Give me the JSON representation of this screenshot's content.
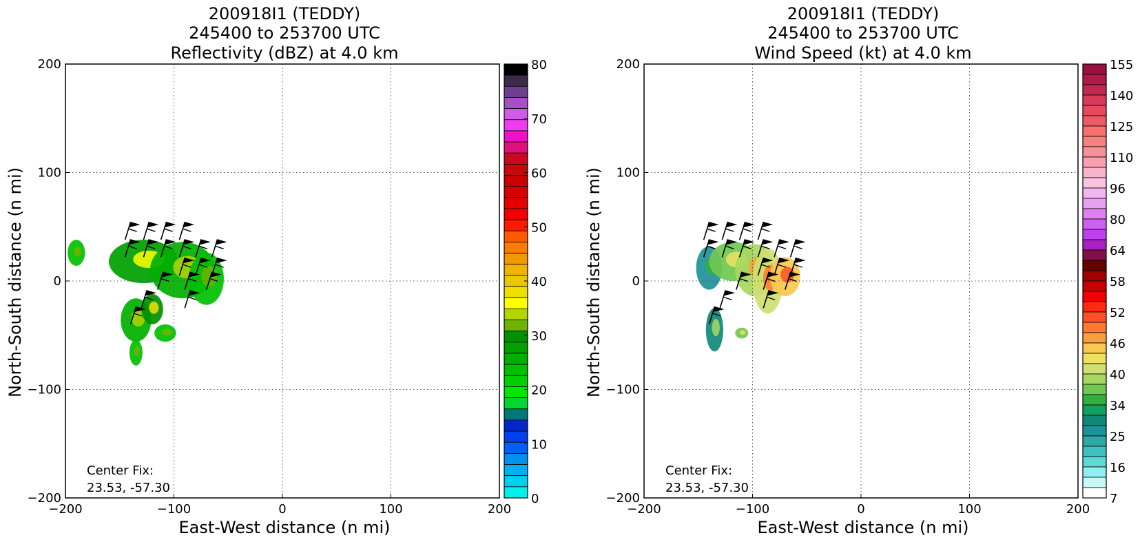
{
  "panels": [
    {
      "title_lines": [
        "200918I1 (TEDDY)",
        "245400 to 253700 UTC",
        "Reflectivity (dBZ) at 4.0 km"
      ],
      "xlabel": "East-West distance (n mi)",
      "ylabel": "North-South distance (n mi)",
      "center_fix_label": "Center Fix:",
      "center_fix_value": "23.53, -57.30",
      "colorbar": {
        "ticks": [
          "80",
          "70",
          "60",
          "50",
          "40",
          "30",
          "20",
          "10",
          "0"
        ],
        "colors_top_to_bottom": [
          "#000000",
          "#3c2a48",
          "#6f3f8f",
          "#a64fc9",
          "#d25ae8",
          "#f03cf0",
          "#f010c8",
          "#e0107a",
          "#cc0820",
          "#c40a0a",
          "#cc0000",
          "#d80000",
          "#e80000",
          "#f40000",
          "#ff1a00",
          "#ff5a00",
          "#ff7a00",
          "#f09a00",
          "#f0b400",
          "#e8c800",
          "#f0e000",
          "#ffff00",
          "#b4d400",
          "#6cb400",
          "#009000",
          "#00a000",
          "#00b000",
          "#00c000",
          "#00d000",
          "#00e800",
          "#00d830",
          "#007878",
          "#0028c8",
          "#0040f0",
          "#0060f8",
          "#0090f0",
          "#00b0f0",
          "#00d0f0",
          "#00f0f0"
        ]
      }
    },
    {
      "title_lines": [
        "200918I1 (TEDDY)",
        "245400 to 253700 UTC",
        "Wind Speed (kt) at 4.0 km"
      ],
      "xlabel": "East-West distance (n mi)",
      "ylabel": "North-South distance (n mi)",
      "center_fix_label": "Center Fix:",
      "center_fix_value": "23.53, -57.30",
      "colorbar": {
        "ticks": [
          "155",
          "140",
          "125",
          "110",
          "96",
          "80",
          "64",
          "58",
          "52",
          "46",
          "40",
          "34",
          "25",
          "16",
          "7"
        ],
        "colors_top_to_bottom": [
          "#9a1040",
          "#b01a48",
          "#c02a50",
          "#d83a58",
          "#e84a5c",
          "#f05a64",
          "#f87070",
          "#f88080",
          "#f89098",
          "#f8a0b0",
          "#f8b4c8",
          "#f8c4e0",
          "#f0b8ee",
          "#e8a0f0",
          "#e080f0",
          "#d060f0",
          "#c040f0",
          "#a820c0",
          "#801048",
          "#6a0000",
          "#a00000",
          "#c80000",
          "#f00000",
          "#ff2a10",
          "#ff5028",
          "#ff7a30",
          "#f8a040",
          "#f8c850",
          "#f0e060",
          "#d0e070",
          "#a8d860",
          "#70c850",
          "#30b040",
          "#10a060",
          "#108878",
          "#20909a",
          "#30a8a8",
          "#40c0c0",
          "#60d8d8",
          "#90f0f0",
          "#c8f8f8",
          "#ffffff"
        ]
      }
    }
  ],
  "chart_data": [
    {
      "type": "heatmap",
      "title": "200918I1 (TEDDY) 245400 to 253700 UTC Reflectivity (dBZ) at 4.0 km",
      "xlabel": "East-West distance (n mi)",
      "ylabel": "North-South distance (n mi)",
      "xlim": [
        -200,
        200
      ],
      "ylim": [
        -200,
        200
      ],
      "xticks": [
        -200,
        -100,
        0,
        100,
        200
      ],
      "yticks": [
        -200,
        -100,
        0,
        100,
        200
      ],
      "grid": true,
      "colorbar_label_ticks": [
        0,
        10,
        20,
        30,
        40,
        50,
        60,
        70,
        80
      ],
      "echo_regions": [
        {
          "cx": -128,
          "cy": 18,
          "rx": 32,
          "ry": 20,
          "value": 28
        },
        {
          "cx": -92,
          "cy": 10,
          "rx": 30,
          "ry": 26,
          "value": 26
        },
        {
          "cx": -70,
          "cy": 2,
          "rx": 16,
          "ry": 24,
          "value": 24
        },
        {
          "cx": -190,
          "cy": 26,
          "rx": 8,
          "ry": 12,
          "value": 24
        },
        {
          "cx": -135,
          "cy": -36,
          "rx": 14,
          "ry": 20,
          "value": 26
        },
        {
          "cx": -120,
          "cy": -26,
          "rx": 10,
          "ry": 14,
          "value": 30
        },
        {
          "cx": -108,
          "cy": -48,
          "rx": 10,
          "ry": 8,
          "value": 24
        },
        {
          "cx": -135,
          "cy": -66,
          "rx": 6,
          "ry": 12,
          "value": 24
        }
      ],
      "wind_barbs": [
        {
          "x": -145,
          "y": 38
        },
        {
          "x": -128,
          "y": 38
        },
        {
          "x": -112,
          "y": 38
        },
        {
          "x": -95,
          "y": 38
        },
        {
          "x": -145,
          "y": 22
        },
        {
          "x": -128,
          "y": 22
        },
        {
          "x": -112,
          "y": 22
        },
        {
          "x": -95,
          "y": 22
        },
        {
          "x": -80,
          "y": 22
        },
        {
          "x": -65,
          "y": 22
        },
        {
          "x": -95,
          "y": 5
        },
        {
          "x": -80,
          "y": 5
        },
        {
          "x": -65,
          "y": 5
        },
        {
          "x": -115,
          "y": -8
        },
        {
          "x": -90,
          "y": -8
        },
        {
          "x": -70,
          "y": -8
        },
        {
          "x": -130,
          "y": -25
        },
        {
          "x": -90,
          "y": -25
        },
        {
          "x": -140,
          "y": -40
        }
      ]
    },
    {
      "type": "heatmap",
      "title": "200918I1 (TEDDY) 245400 to 253700 UTC Wind Speed (kt) at 4.0 km",
      "xlabel": "East-West distance (n mi)",
      "ylabel": "North-South distance (n mi)",
      "xlim": [
        -200,
        200
      ],
      "ylim": [
        -200,
        200
      ],
      "xticks": [
        -200,
        -100,
        0,
        100,
        200
      ],
      "yticks": [
        -200,
        -100,
        0,
        100,
        200
      ],
      "grid": true,
      "colorbar_label_ticks": [
        7,
        16,
        25,
        34,
        40,
        46,
        52,
        58,
        64,
        80,
        96,
        110,
        125,
        140,
        155
      ],
      "speed_regions": [
        {
          "cx": -140,
          "cy": 12,
          "rx": 12,
          "ry": 20,
          "value": 30
        },
        {
          "cx": -118,
          "cy": 18,
          "rx": 22,
          "ry": 18,
          "value": 44
        },
        {
          "cx": -98,
          "cy": 10,
          "rx": 18,
          "ry": 24,
          "value": 50
        },
        {
          "cx": -86,
          "cy": 0,
          "rx": 14,
          "ry": 30,
          "value": 54
        },
        {
          "cx": -70,
          "cy": 4,
          "rx": 14,
          "ry": 18,
          "value": 60
        },
        {
          "cx": -135,
          "cy": -45,
          "rx": 8,
          "ry": 20,
          "value": 36
        },
        {
          "cx": -110,
          "cy": -48,
          "rx": 6,
          "ry": 5,
          "value": 44
        }
      ],
      "wind_barbs": [
        {
          "x": -145,
          "y": 38
        },
        {
          "x": -128,
          "y": 38
        },
        {
          "x": -112,
          "y": 38
        },
        {
          "x": -95,
          "y": 38
        },
        {
          "x": -145,
          "y": 22
        },
        {
          "x": -128,
          "y": 22
        },
        {
          "x": -112,
          "y": 22
        },
        {
          "x": -95,
          "y": 22
        },
        {
          "x": -80,
          "y": 22
        },
        {
          "x": -65,
          "y": 22
        },
        {
          "x": -95,
          "y": 5
        },
        {
          "x": -80,
          "y": 5
        },
        {
          "x": -65,
          "y": 5
        },
        {
          "x": -115,
          "y": -8
        },
        {
          "x": -90,
          "y": -8
        },
        {
          "x": -70,
          "y": -8
        },
        {
          "x": -130,
          "y": -25
        },
        {
          "x": -90,
          "y": -25
        },
        {
          "x": -140,
          "y": -40
        }
      ]
    }
  ]
}
